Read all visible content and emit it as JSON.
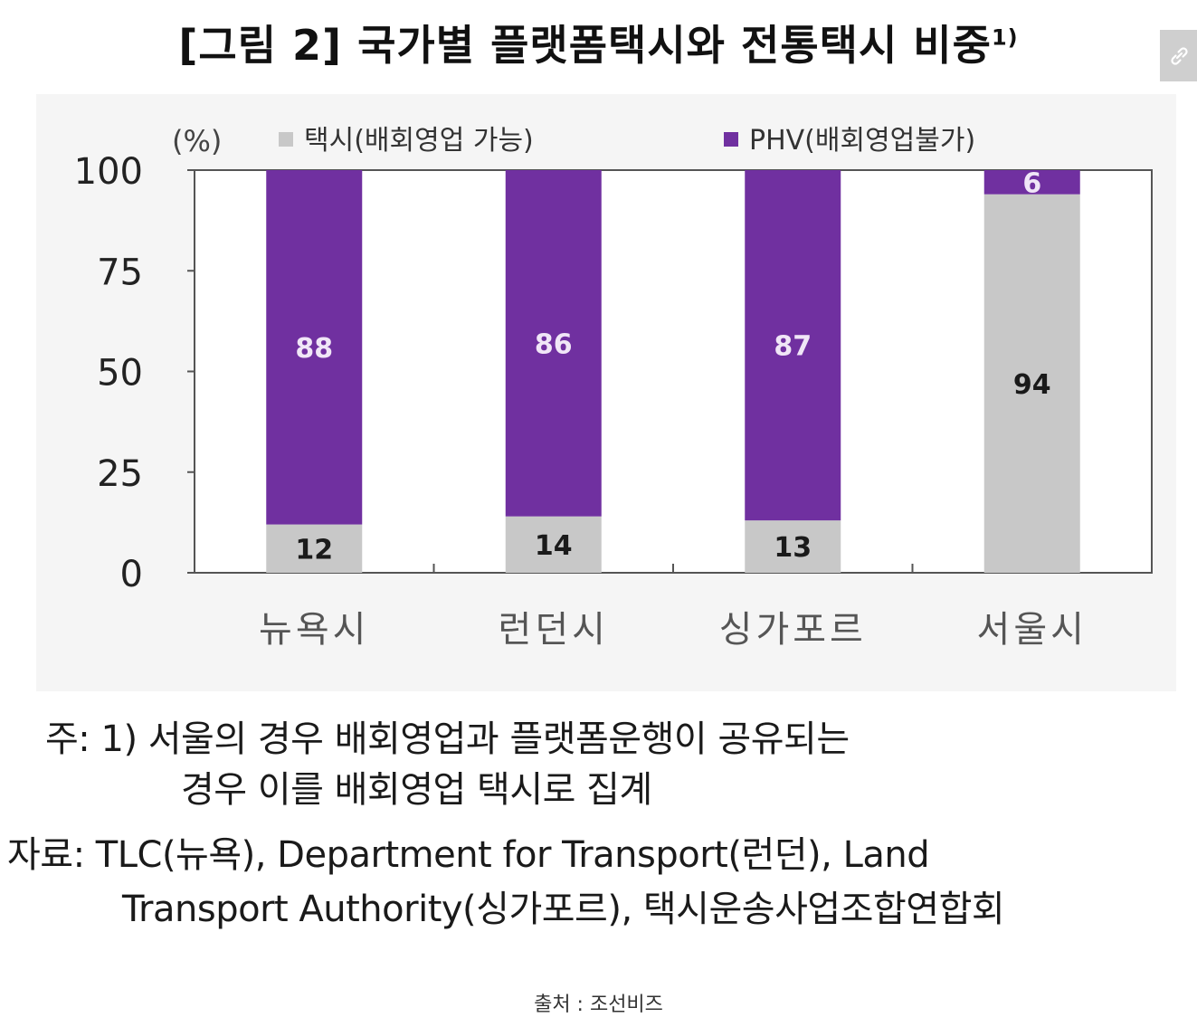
{
  "figure": {
    "title": "[그림 2] 국가별 플랫폼택시와 전통택시 비중",
    "title_superscript": "1)"
  },
  "link_icon": "link-icon",
  "chart_data": {
    "type": "bar",
    "stacked": true,
    "unit_label": "(%)",
    "categories": [
      "뉴욕시",
      "런던시",
      "싱가포르",
      "서울시"
    ],
    "series": [
      {
        "name": "택시(배회영업 가능)",
        "color": "#c8c8c8",
        "label_color": "#1a1a1a",
        "values": [
          12,
          14,
          13,
          94
        ]
      },
      {
        "name": "PHV(배회영업불가)",
        "color": "#7030a0",
        "label_color": "#f0e6f7",
        "values": [
          88,
          86,
          87,
          6
        ]
      }
    ],
    "ylim": [
      0,
      100
    ],
    "yticks": [
      "0",
      "25",
      "50",
      "75",
      "100"
    ],
    "legend_position": "top",
    "grid": false
  },
  "notes": {
    "note_line1": "주: 1) 서울의 경우 배회영업과 플랫폼운행이 공유되는",
    "note_line2": "경우 이를 배회영업 택시로 집계",
    "source_line1": "자료: TLC(뉴욕), Department for Transport(런던), Land",
    "source_line2": "Transport Authority(싱가포르), 택시운송사업조합연합회"
  },
  "caption": "출처 : 조선비즈"
}
